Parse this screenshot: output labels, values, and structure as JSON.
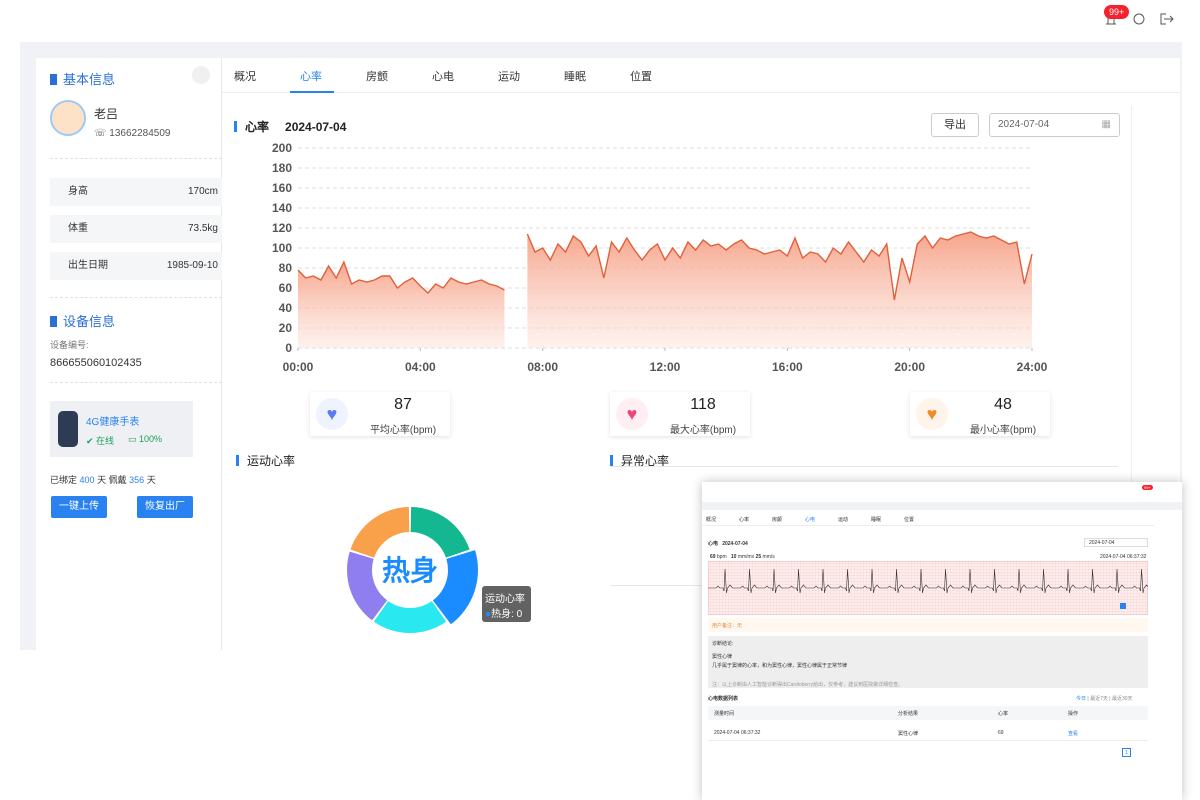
{
  "topbar": {
    "badge": "99+"
  },
  "profile": {
    "title": "基本信息",
    "name": "老吕",
    "phone": "13662284509",
    "fields": [
      {
        "label": "身高",
        "value": "170cm"
      },
      {
        "label": "体重",
        "value": "73.5kg"
      },
      {
        "label": "出生日期",
        "value": "1985-09-10"
      }
    ]
  },
  "device": {
    "title": "设备信息",
    "id_label": "设备编号:",
    "id": "866655060102435",
    "name": "4G健康手表",
    "status": "在线",
    "battery": "100%",
    "bound_label": "已绑定",
    "bound_days": "400",
    "unit": "天",
    "worn_label": "佩戴",
    "worn_days": "356",
    "buttons": [
      "一键上传",
      "恢复出厂"
    ]
  },
  "tabs": [
    "概况",
    "心率",
    "房颤",
    "心电",
    "运动",
    "睡眠",
    "位置"
  ],
  "heart_rate": {
    "title": "心率",
    "date": "2024-07-04",
    "export": "导出",
    "date_input": "2024-07-04",
    "chart_data": {
      "type": "line",
      "x": [
        0,
        0.25,
        0.5,
        0.75,
        1,
        1.25,
        1.5,
        1.75,
        2,
        2.25,
        2.5,
        2.75,
        3,
        3.25,
        3.5,
        3.75,
        4,
        4.25,
        4.5,
        4.75,
        5,
        5.25,
        5.5,
        5.75,
        6,
        6.25,
        6.5,
        6.75,
        7,
        7.25,
        7.5,
        7.75,
        8,
        8.25,
        8.5,
        8.75,
        9,
        9.25,
        9.5,
        9.75,
        10,
        10.25,
        10.5,
        10.75,
        11,
        11.25,
        11.5,
        11.75,
        12,
        12.25,
        12.5,
        12.75,
        13,
        13.25,
        13.5,
        13.75,
        14,
        14.25,
        14.5,
        14.75,
        15,
        15.25,
        15.5,
        15.75,
        16,
        16.25,
        16.5,
        16.75,
        17,
        17.25,
        17.5,
        17.75,
        18,
        18.25,
        18.5,
        18.75,
        19,
        19.25,
        19.5,
        19.75,
        20,
        20.25,
        20.5,
        20.75,
        21,
        21.25,
        21.5,
        21.75,
        22,
        22.25,
        22.5,
        22.75,
        23,
        23.25,
        23.5,
        23.75,
        24
      ],
      "series": [
        {
          "color": "#e0603a",
          "values": [
            78,
            70,
            72,
            68,
            82,
            70,
            86,
            64,
            68,
            66,
            68,
            72,
            72,
            60,
            66,
            70,
            62,
            55,
            64,
            60,
            70,
            66,
            64,
            66,
            68,
            64,
            62,
            58,
            null,
            null,
            114,
            96,
            100,
            88,
            104,
            96,
            112,
            106,
            92,
            102,
            70,
            106,
            96,
            110,
            98,
            88,
            98,
            104,
            88,
            100,
            90,
            106,
            98,
            108,
            102,
            104,
            98,
            104,
            108,
            100,
            98,
            94,
            96,
            98,
            92,
            110,
            90,
            96,
            94,
            86,
            100,
            94,
            106,
            96,
            86,
            98,
            92,
            104,
            48,
            90,
            66,
            104,
            112,
            100,
            110,
            108,
            112,
            114,
            116,
            112,
            110,
            112,
            108,
            104,
            106,
            64,
            94
          ]
        }
      ],
      "xlim": [
        0,
        24
      ],
      "xticks": [
        {
          "value": 0,
          "label": "00:00"
        },
        {
          "value": 4,
          "label": "04:00"
        },
        {
          "value": 8,
          "label": "08:00"
        },
        {
          "value": 12,
          "label": "12:00"
        },
        {
          "value": 16,
          "label": "16:00"
        },
        {
          "value": 20,
          "label": "20:00"
        },
        {
          "value": 24,
          "label": "24:00"
        }
      ],
      "ylim": [
        0,
        200
      ],
      "yticks": [
        0,
        20,
        40,
        60,
        80,
        100,
        120,
        140,
        160,
        180,
        200
      ],
      "grid": true
    },
    "stats": [
      {
        "value": 87,
        "label": "平均心率(bpm)"
      },
      {
        "value": 118,
        "label": "最大心率(bpm)"
      },
      {
        "value": 48,
        "label": "最小心率(bpm)"
      }
    ]
  },
  "exercise": {
    "title": "运动心率",
    "center": "热身",
    "tooltip_title": "运动心率",
    "tooltip_label": "热身",
    "tooltip_value": 0
  },
  "abnormal": {
    "title": "异常心率"
  },
  "overlay": {
    "badge": "99+",
    "title": "心电",
    "date": "2024-07-04",
    "date_input": "2024-07-04",
    "readings": [
      {
        "value": "69",
        "unit": "bpm"
      },
      {
        "value": "10",
        "unit": "mm/mv"
      },
      {
        "value": "25",
        "unit": "mm/s"
      }
    ],
    "timestamp": "2024-07-04 06:37:32",
    "remark": "用户备注：无",
    "diagnosis_title": "诊断结论:",
    "diagnosis": "窦性心律",
    "diagnosis_text": "几乎属于窦律的心率，和为窦性心律，窦性心律属于正常节律",
    "note": "注：以上诊断由人工智能诊断得出Cardioberry给出，仅参考，建议到医院做详细检查。",
    "table_title": "心电数据列表",
    "filters": [
      "今日",
      "最近7天",
      "最近30天"
    ],
    "headers": [
      "测量时间",
      "分析结果",
      "心率",
      "操作"
    ],
    "row": [
      "2024-07-04 06:37:32",
      "窦性心律",
      "69",
      "查看"
    ],
    "page": "1"
  }
}
